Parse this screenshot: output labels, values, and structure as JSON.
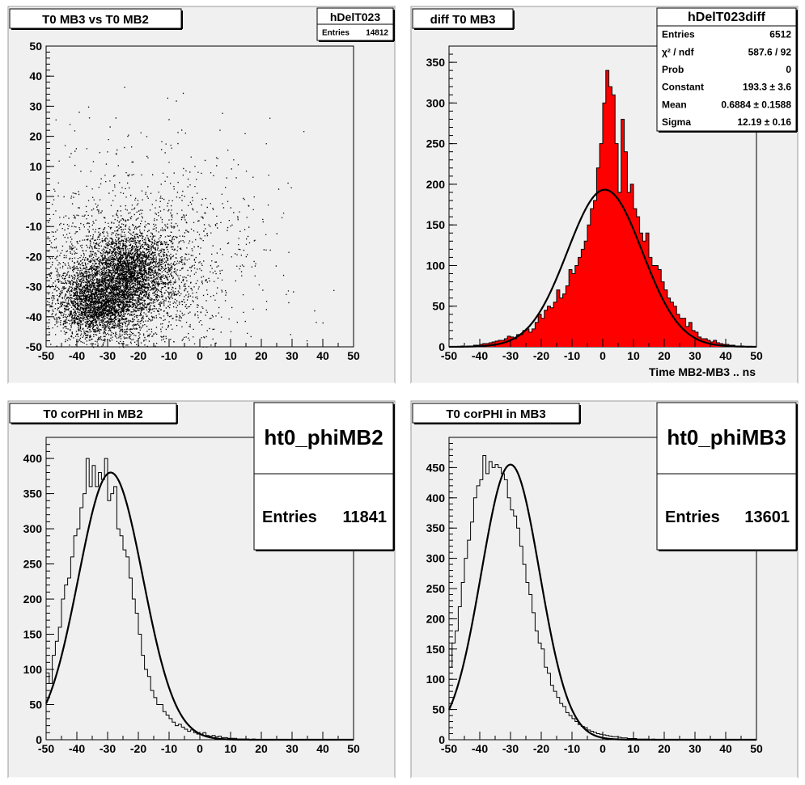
{
  "canvas": {
    "background": "#ffffff",
    "pad_color": "#f0f0f0",
    "border_color": "#888888"
  },
  "chart_data": [
    {
      "type": "scatter",
      "title": "T0 MB3 vs T0 MB2",
      "stats": {
        "name": "hDelT023",
        "rows": [
          {
            "label": "Entries",
            "value": "14812"
          }
        ]
      },
      "xlim": [
        -50,
        50
      ],
      "ylim": [
        -50,
        50
      ],
      "xticks": [
        "-50",
        "-40",
        "-30",
        "-20",
        "-10",
        "0",
        "10",
        "20",
        "30",
        "40",
        "50"
      ],
      "yticks": [
        "50",
        "40",
        "30",
        "20",
        "10",
        "0",
        "-10",
        "-20",
        "-30",
        "-40",
        "-50"
      ],
      "xlabel": "",
      "ylabel": "",
      "entries": 14812,
      "clusters": [
        {
          "mean_x": -33,
          "mean_y": -35,
          "sigma_x": 7,
          "sigma_y": 6,
          "n": 4500
        },
        {
          "mean_x": -23,
          "mean_y": -24,
          "sigma_x": 6,
          "sigma_y": 6,
          "n": 3000
        },
        {
          "mean_x": -25,
          "mean_y": -28,
          "sigma_x": 13,
          "sigma_y": 11,
          "n": 4500
        },
        {
          "mean_x": -15,
          "mean_y": -15,
          "sigma_x": 22,
          "sigma_y": 18,
          "n": 1400
        }
      ]
    },
    {
      "type": "bar",
      "subtype": "histogram",
      "title": "diff T0 MB3",
      "fill_color": "#ff0000",
      "fit_color": "#000000",
      "stats": {
        "name": "hDelT023diff",
        "rows": [
          {
            "label": "Entries",
            "value": "6512"
          },
          {
            "label": "χ² / ndf",
            "value": "587.6 / 92"
          },
          {
            "label": "Prob",
            "value": "0"
          },
          {
            "label": "Constant",
            "value": "193.3 ± 3.6"
          },
          {
            "label": "Mean",
            "value": "0.6884 ± 0.1588"
          },
          {
            "label": "Sigma",
            "value": "12.19 ± 0.16"
          }
        ]
      },
      "xlim": [
        -50,
        50
      ],
      "ylim": [
        0,
        370
      ],
      "xticks": [
        "-50",
        "-40",
        "-30",
        "-20",
        "-10",
        "0",
        "10",
        "20",
        "30",
        "40",
        "50"
      ],
      "yticks": [
        "0",
        "50",
        "100",
        "150",
        "200",
        "250",
        "300",
        "350"
      ],
      "xlabel": "Time MB2-MB3  ..  ns",
      "ylabel": "",
      "bin_start": -50,
      "bin_width": 1,
      "values": [
        0,
        0,
        0,
        0,
        1,
        0,
        1,
        1,
        2,
        2,
        3,
        4,
        4,
        5,
        6,
        7,
        8,
        8,
        10,
        13,
        12,
        10,
        15,
        15,
        20,
        22,
        18,
        22,
        30,
        40,
        35,
        45,
        50,
        48,
        55,
        70,
        60,
        65,
        75,
        95,
        90,
        100,
        110,
        120,
        130,
        150,
        170,
        180,
        220,
        250,
        300,
        340,
        320,
        310,
        250,
        190,
        280,
        240,
        190,
        200,
        170,
        160,
        140,
        130,
        140,
        110,
        100,
        100,
        95,
        80,
        70,
        60,
        55,
        50,
        40,
        35,
        35,
        25,
        30,
        20,
        18,
        12,
        10,
        10,
        8,
        6,
        8,
        5,
        4,
        3,
        3,
        2,
        2,
        1,
        1,
        1,
        0,
        0,
        0,
        0
      ],
      "fit": {
        "function": "gaus",
        "constant": 193.3,
        "mean": 0.6884,
        "sigma": 12.19
      }
    },
    {
      "type": "bar",
      "subtype": "histogram",
      "title": "T0 corPHI in MB2",
      "line_color": "#000000",
      "fit_color": "#000000",
      "stats": {
        "name": "ht0_phiMB2",
        "rows": [
          {
            "label": "Entries",
            "value": "11841"
          }
        ]
      },
      "xlim": [
        -50,
        50
      ],
      "ylim": [
        0,
        430
      ],
      "xticks": [
        "-50",
        "-40",
        "-30",
        "-20",
        "-10",
        "0",
        "10",
        "20",
        "30",
        "40",
        "50"
      ],
      "yticks": [
        "0",
        "50",
        "100",
        "150",
        "200",
        "250",
        "300",
        "350",
        "400"
      ],
      "xlabel": "",
      "ylabel": "",
      "bin_start": -50,
      "bin_width": 1,
      "values": [
        95,
        80,
        120,
        140,
        160,
        200,
        220,
        230,
        260,
        290,
        300,
        330,
        350,
        400,
        360,
        390,
        360,
        380,
        370,
        400,
        340,
        350,
        360,
        300,
        290,
        270,
        260,
        230,
        200,
        180,
        150,
        120,
        100,
        90,
        70,
        60,
        50,
        50,
        40,
        35,
        30,
        25,
        20,
        22,
        18,
        15,
        12,
        14,
        10,
        8,
        8,
        10,
        6,
        5,
        6,
        4,
        5,
        3,
        3,
        2,
        2,
        2,
        1,
        1,
        1,
        1,
        0,
        1,
        0,
        0,
        0,
        0,
        0,
        0,
        0,
        0,
        0,
        0,
        0,
        0,
        0,
        0,
        0,
        0,
        0,
        0,
        0,
        0,
        0,
        0,
        0,
        0,
        0,
        0,
        0,
        0,
        0,
        0,
        0,
        0
      ],
      "fit": {
        "function": "gaus",
        "constant": 380,
        "mean": -29,
        "sigma": 10.5
      }
    },
    {
      "type": "bar",
      "subtype": "histogram",
      "title": "T0 corPHI in MB3",
      "line_color": "#000000",
      "fit_color": "#000000",
      "stats": {
        "name": "ht0_phiMB3",
        "rows": [
          {
            "label": "Entries",
            "value": "13601"
          }
        ]
      },
      "xlim": [
        -50,
        50
      ],
      "ylim": [
        0,
        500
      ],
      "xticks": [
        "-50",
        "-40",
        "-30",
        "-20",
        "-10",
        "0",
        "10",
        "20",
        "30",
        "40",
        "50"
      ],
      "yticks": [
        "0",
        "50",
        "100",
        "150",
        "200",
        "250",
        "300",
        "350",
        "400",
        "450"
      ],
      "xlabel": "",
      "ylabel": "",
      "bin_start": -50,
      "bin_width": 1,
      "values": [
        120,
        160,
        180,
        220,
        260,
        300,
        330,
        360,
        400,
        420,
        430,
        470,
        440,
        460,
        450,
        455,
        450,
        440,
        430,
        400,
        380,
        370,
        350,
        320,
        290,
        260,
        240,
        210,
        180,
        160,
        150,
        120,
        110,
        90,
        80,
        70,
        60,
        55,
        45,
        40,
        35,
        30,
        25,
        22,
        20,
        16,
        14,
        12,
        10,
        9,
        8,
        7,
        6,
        5,
        5,
        4,
        3,
        3,
        2,
        2,
        2,
        1,
        1,
        1,
        1,
        0,
        1,
        0,
        0,
        0,
        0,
        0,
        0,
        0,
        0,
        0,
        0,
        0,
        0,
        0,
        0,
        0,
        0,
        0,
        0,
        0,
        0,
        0,
        0,
        0,
        0,
        0,
        0,
        0,
        0,
        0,
        0,
        0,
        0,
        0
      ],
      "fit": {
        "function": "gaus",
        "constant": 455,
        "mean": -30,
        "sigma": 9.5
      }
    }
  ]
}
